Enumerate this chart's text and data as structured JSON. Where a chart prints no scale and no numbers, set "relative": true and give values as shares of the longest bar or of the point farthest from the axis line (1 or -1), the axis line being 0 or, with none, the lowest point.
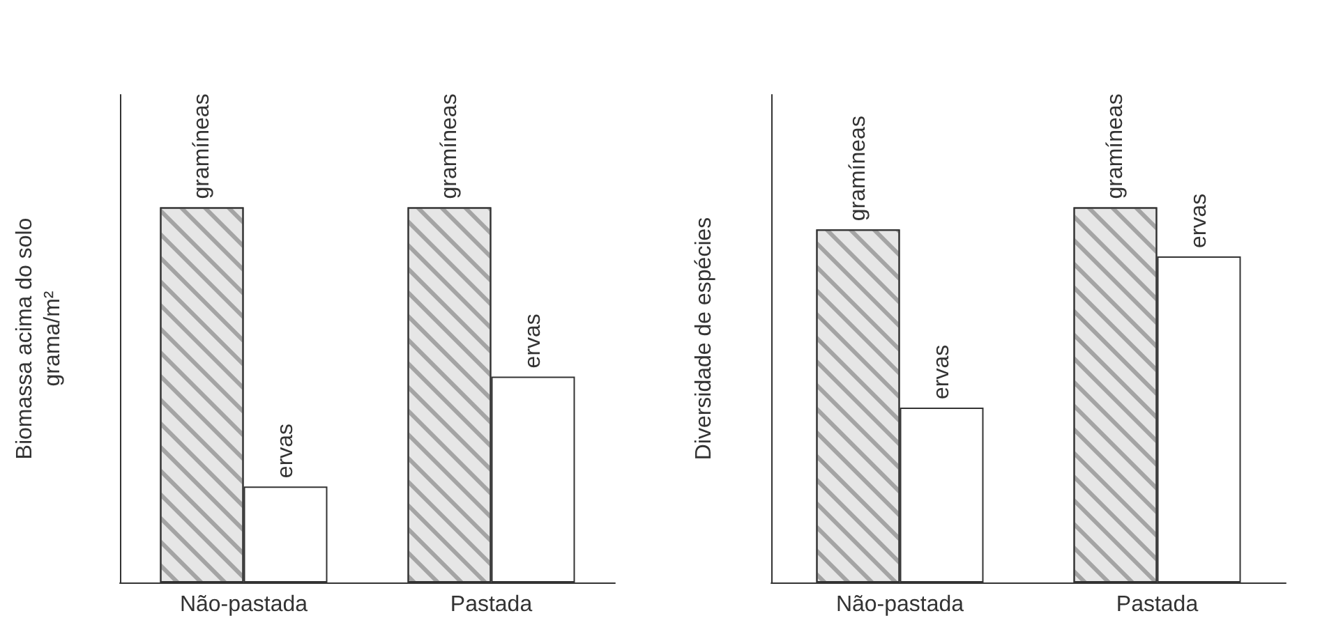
{
  "chart_data": [
    {
      "type": "bar",
      "ylabel": "Biomassa acima do solo\ngrama/m²",
      "relative": true,
      "categories": [
        "Não-pastada",
        "Pastada"
      ],
      "legend": false,
      "grid": false,
      "series": [
        {
          "name": "gramíneas",
          "color": "#e6e6e6",
          "values": [
            1,
            1
          ]
        },
        {
          "name": "ervas",
          "color": "#ffffff",
          "values": [
            0.256,
            0.549
          ]
        }
      ]
    },
    {
      "type": "bar",
      "ylabel": "Diversidade de espécies",
      "relative": true,
      "categories": [
        "Não-pastada",
        "Pastada"
      ],
      "legend": false,
      "grid": false,
      "series": [
        {
          "name": "gramíneas",
          "color": "#e6e6e6",
          "values": [
            0.941,
            1
          ]
        },
        {
          "name": "ervas",
          "color": "#ffffff",
          "values": [
            0.466,
            0.869
          ]
        }
      ]
    }
  ]
}
